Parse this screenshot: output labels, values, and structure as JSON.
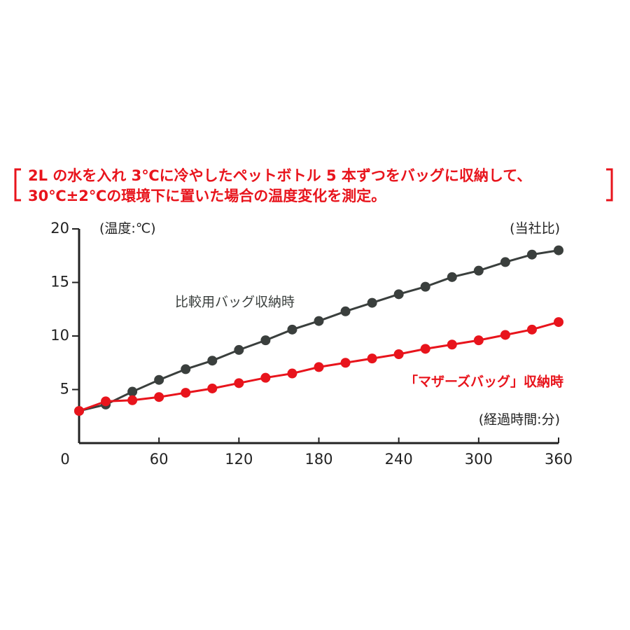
{
  "chart_data": {
    "type": "line",
    "title": "2L の水を入れ 3℃に冷やしたペットボトル 5 本ずつをバッグに収納して、",
    "subtitle": "30℃±2℃の環境下に置いた場合の温度変化を測定。",
    "y_label": "(温度:℃)",
    "x_label": "(経過時間:分)",
    "note": "(当社比)",
    "x": [
      0,
      20,
      40,
      60,
      80,
      100,
      120,
      140,
      160,
      180,
      200,
      220,
      240,
      260,
      280,
      300,
      320,
      340,
      360
    ],
    "series": [
      {
        "name": "比較用バッグ収納時",
        "color": "#3a3f3d",
        "values": [
          3.0,
          3.6,
          4.8,
          5.9,
          6.9,
          7.7,
          8.7,
          9.6,
          10.6,
          11.4,
          12.3,
          13.1,
          13.9,
          14.6,
          15.5,
          16.1,
          16.9,
          17.6,
          18.0
        ]
      },
      {
        "name": "「マザーズバッグ」収納時",
        "color": "#e8141c",
        "values": [
          3.0,
          3.9,
          4.0,
          4.3,
          4.7,
          5.1,
          5.6,
          6.1,
          6.5,
          7.1,
          7.5,
          7.9,
          8.3,
          8.8,
          9.2,
          9.6,
          10.1,
          10.6,
          11.3
        ]
      }
    ],
    "xlim": [
      0,
      360
    ],
    "xticks": [
      0,
      60,
      120,
      180,
      240,
      300,
      360
    ],
    "ylim": [
      0,
      20
    ],
    "yticks": [
      5,
      10,
      15,
      20
    ]
  }
}
